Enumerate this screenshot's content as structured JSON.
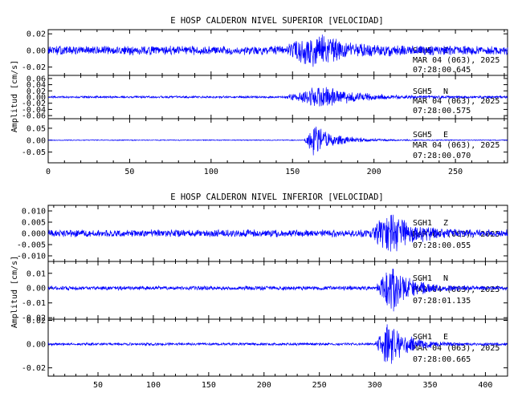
{
  "chart_data": [
    {
      "type": "line",
      "title": "E HOSP CALDERON NIVEL SUPERIOR [VELOCIDAD]",
      "ylabel": "Amplitud [cm/s]",
      "xlabel": "",
      "xlim": [
        0,
        282
      ],
      "xticks": [
        "0",
        "50",
        "100",
        "150",
        "200",
        "250"
      ],
      "xtick_values": [
        0,
        50,
        100,
        150,
        200,
        250
      ],
      "grid": false,
      "line_color": "#0000ff",
      "traces": [
        {
          "station": "SGH5",
          "component": "Z",
          "date": "MAR 04 (063), 2025",
          "time": "07:28:00.645",
          "ylim": [
            -0.03,
            0.025
          ],
          "yticks": [
            "0.02",
            "0.00",
            "-0.02"
          ],
          "ytick_values": [
            0.02,
            0.0,
            -0.02
          ],
          "noise": 0.006,
          "peak": 0.026,
          "onset": 145,
          "peak_time": 163,
          "decay": 40
        },
        {
          "station": "SGH5",
          "component": "N",
          "date": "MAR 04 (063), 2025",
          "time": "07:28:00.575",
          "ylim": [
            -0.07,
            0.07
          ],
          "yticks": [
            "0.06",
            "0.04",
            "0.02",
            "0.00",
            "-0.02",
            "-0.04",
            "-0.06"
          ],
          "ytick_values": [
            0.06,
            0.04,
            0.02,
            0.0,
            -0.02,
            -0.04,
            -0.06
          ],
          "noise": 0.004,
          "peak": 0.042,
          "onset": 145,
          "peak_time": 168,
          "decay": 45
        },
        {
          "station": "SGH5",
          "component": "E",
          "date": "MAR 04 (063), 2025",
          "time": "07:28:00.070",
          "ylim": [
            -0.095,
            0.09
          ],
          "yticks": [
            "0.05",
            "0.00",
            "-0.05"
          ],
          "ytick_values": [
            0.05,
            0.0,
            -0.05
          ],
          "noise": 0.002,
          "peak": 0.075,
          "onset": 157,
          "peak_time": 163,
          "decay": 30
        }
      ]
    },
    {
      "type": "line",
      "title": "E HOSP CALDERON NIVEL INFERIOR [VELOCIDAD]",
      "ylabel": "Amplitud [cm/s]",
      "xlabel": "",
      "xlim": [
        5,
        420
      ],
      "xticks": [
        "50",
        "100",
        "150",
        "200",
        "250",
        "300",
        "350",
        "400"
      ],
      "xtick_values": [
        50,
        100,
        150,
        200,
        250,
        300,
        350,
        400
      ],
      "grid": false,
      "line_color": "#0000ff",
      "traces": [
        {
          "station": "SGH1",
          "component": "Z",
          "date": "MAR 04 (063), 2025",
          "time": "07:28:00.055",
          "ylim": [
            -0.0125,
            0.0125
          ],
          "yticks": [
            "0.010",
            "0.005",
            "0.000",
            "-0.005",
            "-0.010"
          ],
          "ytick_values": [
            0.01,
            0.005,
            0.0,
            -0.005,
            -0.01
          ],
          "noise": 0.0018,
          "peak": 0.012,
          "onset": 295,
          "peak_time": 315,
          "decay": 40
        },
        {
          "station": "SGH1",
          "component": "N",
          "date": "MAR 04 (063), 2025",
          "time": "07:28:01.135",
          "ylim": [
            -0.021,
            0.018
          ],
          "yticks": [
            "0.01",
            "0.00",
            "-0.01",
            "-0.02"
          ],
          "ytick_values": [
            0.01,
            0.0,
            -0.01,
            -0.02
          ],
          "noise": 0.0015,
          "peak": 0.019,
          "onset": 300,
          "peak_time": 316,
          "decay": 35
        },
        {
          "station": "SGH1",
          "component": "E",
          "date": "MAR 04 (063), 2025",
          "time": "07:28:00.665",
          "ylim": [
            -0.027,
            0.021
          ],
          "yticks": [
            "0.02",
            "0.00",
            "-0.02"
          ],
          "ytick_values": [
            0.02,
            0.0,
            -0.02
          ],
          "noise": 0.0012,
          "peak": 0.025,
          "onset": 300,
          "peak_time": 313,
          "decay": 35
        }
      ]
    }
  ]
}
